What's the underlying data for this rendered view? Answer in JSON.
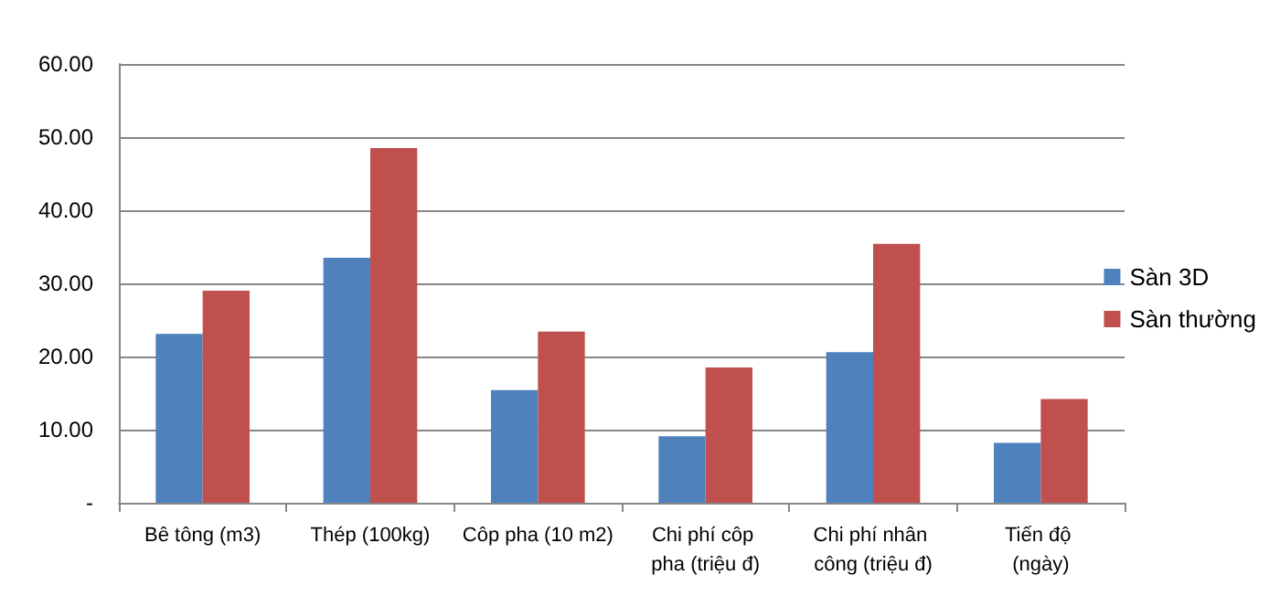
{
  "chart_data": {
    "type": "bar",
    "categories": [
      "Bê tông (m3)",
      "Thép (100kg)",
      "Côp pha (10 m2)",
      "Chi phí côp pha (triệu đ)",
      "Chi phí nhân công (triệu đ)",
      "Tiến độ (ngày)"
    ],
    "series": [
      {
        "name": "Sàn 3D",
        "color": "#4f81bd",
        "values": [
          23.1,
          33.5,
          15.4,
          9.1,
          20.6,
          8.2
        ]
      },
      {
        "name": "Sàn thường",
        "color": "#c0504d",
        "values": [
          29.0,
          48.5,
          23.4,
          18.5,
          35.4,
          14.2
        ]
      }
    ],
    "ylim": [
      0,
      60
    ],
    "yticks": [
      {
        "value": 0,
        "label": "-"
      },
      {
        "value": 10,
        "label": "10.00"
      },
      {
        "value": 20,
        "label": "20.00"
      },
      {
        "value": 30,
        "label": "30.00"
      },
      {
        "value": 40,
        "label": "40.00"
      },
      {
        "value": 50,
        "label": "50.00"
      },
      {
        "value": 60,
        "label": "60.00"
      }
    ],
    "grid": "y",
    "legend": "right"
  }
}
